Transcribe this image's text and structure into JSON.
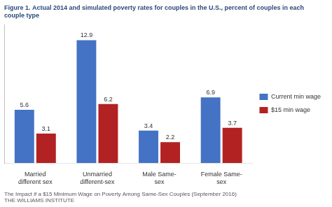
{
  "chart_data": {
    "type": "bar",
    "title": "Figure 1. Actual 2014 and simulated poverty rates for couples in the U.S., percent of couples in each\ncouple type",
    "categories": [
      "Married\ndifferent sex",
      "Unmarried\ndifferent-sex",
      "Male Same-\nsex",
      "Female Same-\nsex"
    ],
    "series": [
      {
        "name": "Current min wage",
        "color": "#4472C4",
        "values": [
          5.6,
          12.9,
          3.4,
          6.9
        ]
      },
      {
        "name": "$15 min wage",
        "color": "#B22222",
        "values": [
          3.1,
          6.2,
          2.2,
          3.7
        ]
      }
    ],
    "ylim": [
      0,
      14.5
    ],
    "grid": false,
    "legend": "right",
    "data_labels": true,
    "tick_labels": "x",
    "annotations": [
      "The Impact if a $15 Minimum Wage on Poverty Among Same-Sex Couples (September 2016)",
      "THE WILLIAMS INSTITUTE"
    ]
  }
}
